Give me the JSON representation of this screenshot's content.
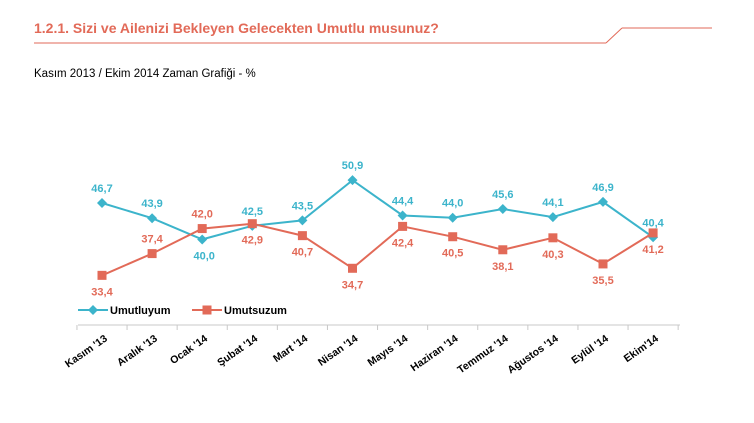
{
  "header": {
    "title": "1.2.1. Sizi ve Ailenizi Bekleyen Gelecekten Umutlu musunuz?",
    "subtitle": "Kasım 2013 / Ekim 2014  Zaman Grafiği  - %",
    "accent_color": "#e26a58"
  },
  "chart_data": {
    "type": "line",
    "categories": [
      "Kasım '13",
      "Aralık '13",
      "Ocak '14",
      "Şubat '14",
      "Mart '14",
      "Nisan '14",
      "Mayıs '14",
      "Haziran '14",
      "Temmuz '14",
      "Ağustos '14",
      "Eylül '14",
      "Ekim'14"
    ],
    "series": [
      {
        "name": "Umutluyum",
        "color": "#3cb4cb",
        "marker": "diamond",
        "values": [
          46.7,
          43.9,
          40.0,
          42.5,
          43.5,
          50.9,
          44.4,
          44.0,
          45.6,
          44.1,
          46.9,
          40.4
        ],
        "labels": [
          "46,7",
          "43,9",
          "40,0",
          "42,5",
          "43,5",
          "50,9",
          "44,4",
          "44,0",
          "45,6",
          "44,1",
          "46,9",
          "40,4"
        ]
      },
      {
        "name": "Umutsuzum",
        "color": "#e26a58",
        "marker": "square",
        "values": [
          33.4,
          37.4,
          42.0,
          42.9,
          40.7,
          34.7,
          42.4,
          40.5,
          38.1,
          40.3,
          35.5,
          41.2
        ],
        "labels": [
          "33,4",
          "37,4",
          "42,0",
          "42,9",
          "40,7",
          "34,7",
          "42,4",
          "40,5",
          "38,1",
          "40,3",
          "35,5",
          "41,2"
        ]
      }
    ],
    "legend_position": "bottom-left",
    "grid": false
  }
}
